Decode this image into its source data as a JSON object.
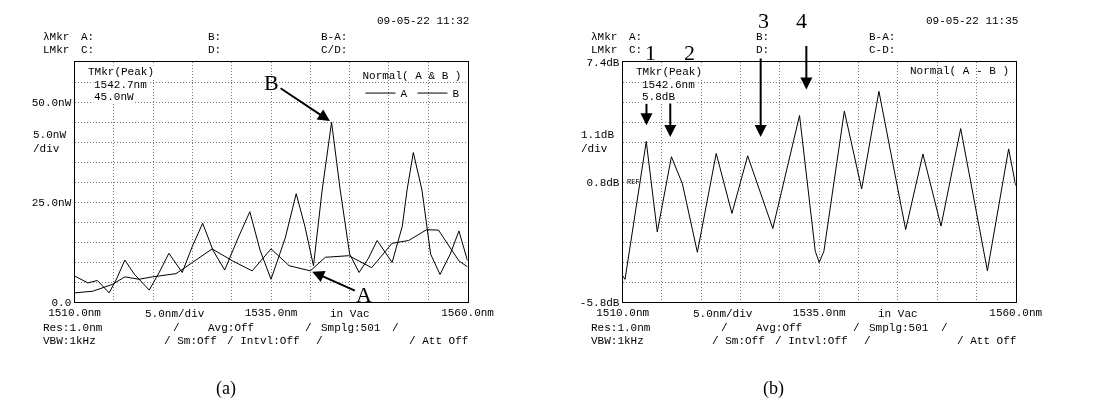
{
  "chart_data": [
    {
      "type": "line",
      "xlim": [
        1510,
        1560
      ],
      "ylim": [
        0,
        60
      ],
      "xlabel": "5.0nm/div",
      "ylabel": "5.0nW\n/div",
      "xticks": [
        {
          "value": 1510,
          "label": "1510.0nm"
        },
        {
          "value": 1515,
          "label": null
        },
        {
          "value": 1520,
          "label": null
        },
        {
          "value": 1525,
          "label": null
        },
        {
          "value": 1530,
          "label": null
        },
        {
          "value": 1535,
          "label": "1535.0nm"
        },
        {
          "value": 1540,
          "label": null
        },
        {
          "value": 1545,
          "label": null
        },
        {
          "value": 1550,
          "label": null
        },
        {
          "value": 1555,
          "label": null
        },
        {
          "value": 1560,
          "label": "1560.0nm"
        }
      ],
      "yticks": [
        {
          "value": 0,
          "label": "0.0"
        },
        {
          "value": 5,
          "label": null
        },
        {
          "value": 10,
          "label": null
        },
        {
          "value": 15,
          "label": null
        },
        {
          "value": 20,
          "label": null
        },
        {
          "value": 25,
          "label": "25.0nW"
        },
        {
          "value": 30,
          "label": null
        },
        {
          "value": 35,
          "label": null
        },
        {
          "value": 40,
          "label": null
        },
        {
          "value": 45,
          "label": null
        },
        {
          "value": 50,
          "label": "50.0nW"
        },
        {
          "value": 55,
          "label": null
        },
        {
          "value": 60,
          "label": null
        }
      ],
      "grid": true,
      "legend": "top right",
      "legend_title": "Normal( A & B )",
      "marker": "none",
      "line_style": "solid",
      "series": [
        {
          "name": "A",
          "color": "#000000",
          "x": [
            1510,
            1512.3,
            1514.8,
            1516.4,
            1518.2,
            1519.9,
            1522.9,
            1525.0,
            1527.5,
            1530.1,
            1532.6,
            1535.0,
            1537.3,
            1540.0,
            1541.9,
            1544.9,
            1547.8,
            1550.4,
            1552.5,
            1554.8,
            1556.3,
            1558.9,
            1560
          ],
          "values": [
            2.3,
            2.7,
            4.4,
            6.3,
            5.7,
            6.3,
            7.1,
            9.9,
            13.3,
            10.3,
            7.8,
            13.3,
            9.1,
            7.8,
            11.2,
            11.6,
            8.6,
            14.7,
            15.4,
            18.1,
            18.0,
            10.3,
            8.8
          ]
        },
        {
          "name": "B",
          "color": "#000000",
          "x": [
            1510,
            1511.7,
            1512.9,
            1514.4,
            1515.4,
            1516.4,
            1517.6,
            1519.5,
            1520.8,
            1522.0,
            1523.7,
            1525.0,
            1526.3,
            1527.6,
            1529.1,
            1530.8,
            1532.3,
            1533.6,
            1535.0,
            1536.8,
            1538.2,
            1539.3,
            1540.4,
            1541.5,
            1542.7,
            1543.8,
            1545.0,
            1546.2,
            1547.4,
            1548.5,
            1550.4,
            1551.7,
            1552.3,
            1553.1,
            1554.2,
            1555.3,
            1556.5,
            1557.8,
            1558.9,
            1560
          ],
          "values": [
            6.5,
            4.8,
            5.4,
            2.3,
            6,
            10.5,
            7,
            3.0,
            7.5,
            12.2,
            7.4,
            14,
            19.7,
            13,
            8.0,
            16,
            22.6,
            13,
            5.7,
            16,
            27.1,
            19,
            9.1,
            28,
            45.0,
            28,
            12,
            7.4,
            11,
            15.4,
            9.9,
            19,
            28,
            37.4,
            28,
            12,
            6.9,
            12,
            17.8,
            10.3
          ]
        }
      ],
      "annotations": [
        "09-05-22 11:32",
        "λMkr",
        "A:",
        "B:",
        "B-A:",
        "LMkr",
        "C:",
        "D:",
        "C/D:",
        "TMkr(Peak)",
        "1542.7nm",
        "45.0nW",
        "in Vac",
        "Res:1.0nm",
        "/",
        "Avg:Off",
        "/",
        "Smplg:501",
        "/",
        "VBW:1kHz",
        "/ Sm:Off",
        "/ Intvl:Off",
        "/",
        "/ Att Off",
        "(a)",
        {
          "text": "B",
          "x": 1542.7,
          "y": 45.0
        },
        {
          "text": "A",
          "x": 1540.0,
          "y": 7.8
        }
      ]
    },
    {
      "type": "line",
      "xlim": [
        1510,
        1560
      ],
      "ylim": [
        -5.8,
        7.4
      ],
      "xlabel": "5.0nm/div",
      "ylabel": "1.1dB\n/div",
      "xticks": [
        {
          "value": 1510,
          "label": "1510.0nm"
        },
        {
          "value": 1515,
          "label": null
        },
        {
          "value": 1520,
          "label": null
        },
        {
          "value": 1525,
          "label": null
        },
        {
          "value": 1530,
          "label": null
        },
        {
          "value": 1535,
          "label": "1535.0nm"
        },
        {
          "value": 1540,
          "label": null
        },
        {
          "value": 1545,
          "label": null
        },
        {
          "value": 1550,
          "label": null
        },
        {
          "value": 1555,
          "label": null
        },
        {
          "value": 1560,
          "label": "1560.0nm"
        }
      ],
      "yticks": [
        {
          "value": -5.8,
          "label": "-5.8dB"
        },
        {
          "value": -4.7,
          "label": null
        },
        {
          "value": -3.6,
          "label": null
        },
        {
          "value": -2.5,
          "label": null
        },
        {
          "value": -1.4,
          "label": null
        },
        {
          "value": -0.3,
          "label": null
        },
        {
          "value": 0.8,
          "label": "0.8dB"
        },
        {
          "value": 1.9,
          "label": null
        },
        {
          "value": 3.0,
          "label": null
        },
        {
          "value": 4.1,
          "label": null
        },
        {
          "value": 5.2,
          "label": null
        },
        {
          "value": 6.3,
          "label": null
        },
        {
          "value": 7.4,
          "label": "7.4dB"
        }
      ],
      "grid": true,
      "marker": "none",
      "line_style": "solid",
      "series": [
        {
          "color": "#000000",
          "x": [
            1510.0,
            1510.3,
            1513.0,
            1514.4,
            1516.2,
            1517.6,
            1519.5,
            1521.9,
            1523.9,
            1525.9,
            1529.1,
            1532.5,
            1534.5,
            1535.0,
            1535.6,
            1538.2,
            1540.4,
            1542.6,
            1546.0,
            1548.2,
            1550.5,
            1553.0,
            1556.4,
            1559.1,
            1560
          ],
          "values": [
            -4.36,
            -4.55,
            3.04,
            -1.94,
            2.2,
            0.71,
            -3.06,
            2.38,
            -0.92,
            2.25,
            -1.75,
            4.47,
            -3.0,
            -3.62,
            -3.0,
            4.71,
            0.43,
            5.8,
            -1.81,
            2.35,
            -1.62,
            3.75,
            -4.08,
            2.63,
            0.61
          ]
        }
      ],
      "annotations": [
        "09-05-22 11:35",
        "λMkr",
        "A:",
        "B:",
        "B-A:",
        "LMkr",
        "C:",
        "D:",
        "C-D:",
        "TMkr(Peak)",
        "1542.6nm",
        "5.8dB",
        "in Vac",
        "Res:1.0nm",
        "/",
        "Avg:Off",
        "/",
        "Smplg:501",
        "/",
        "VBW:1kHz",
        "/ Sm:Off",
        "/ Intvl:Off",
        "/",
        "/ Att Off",
        "(b)",
        "REF",
        "Normal( A - B )",
        "1",
        "2",
        "3",
        "4"
      ]
    }
  ]
}
